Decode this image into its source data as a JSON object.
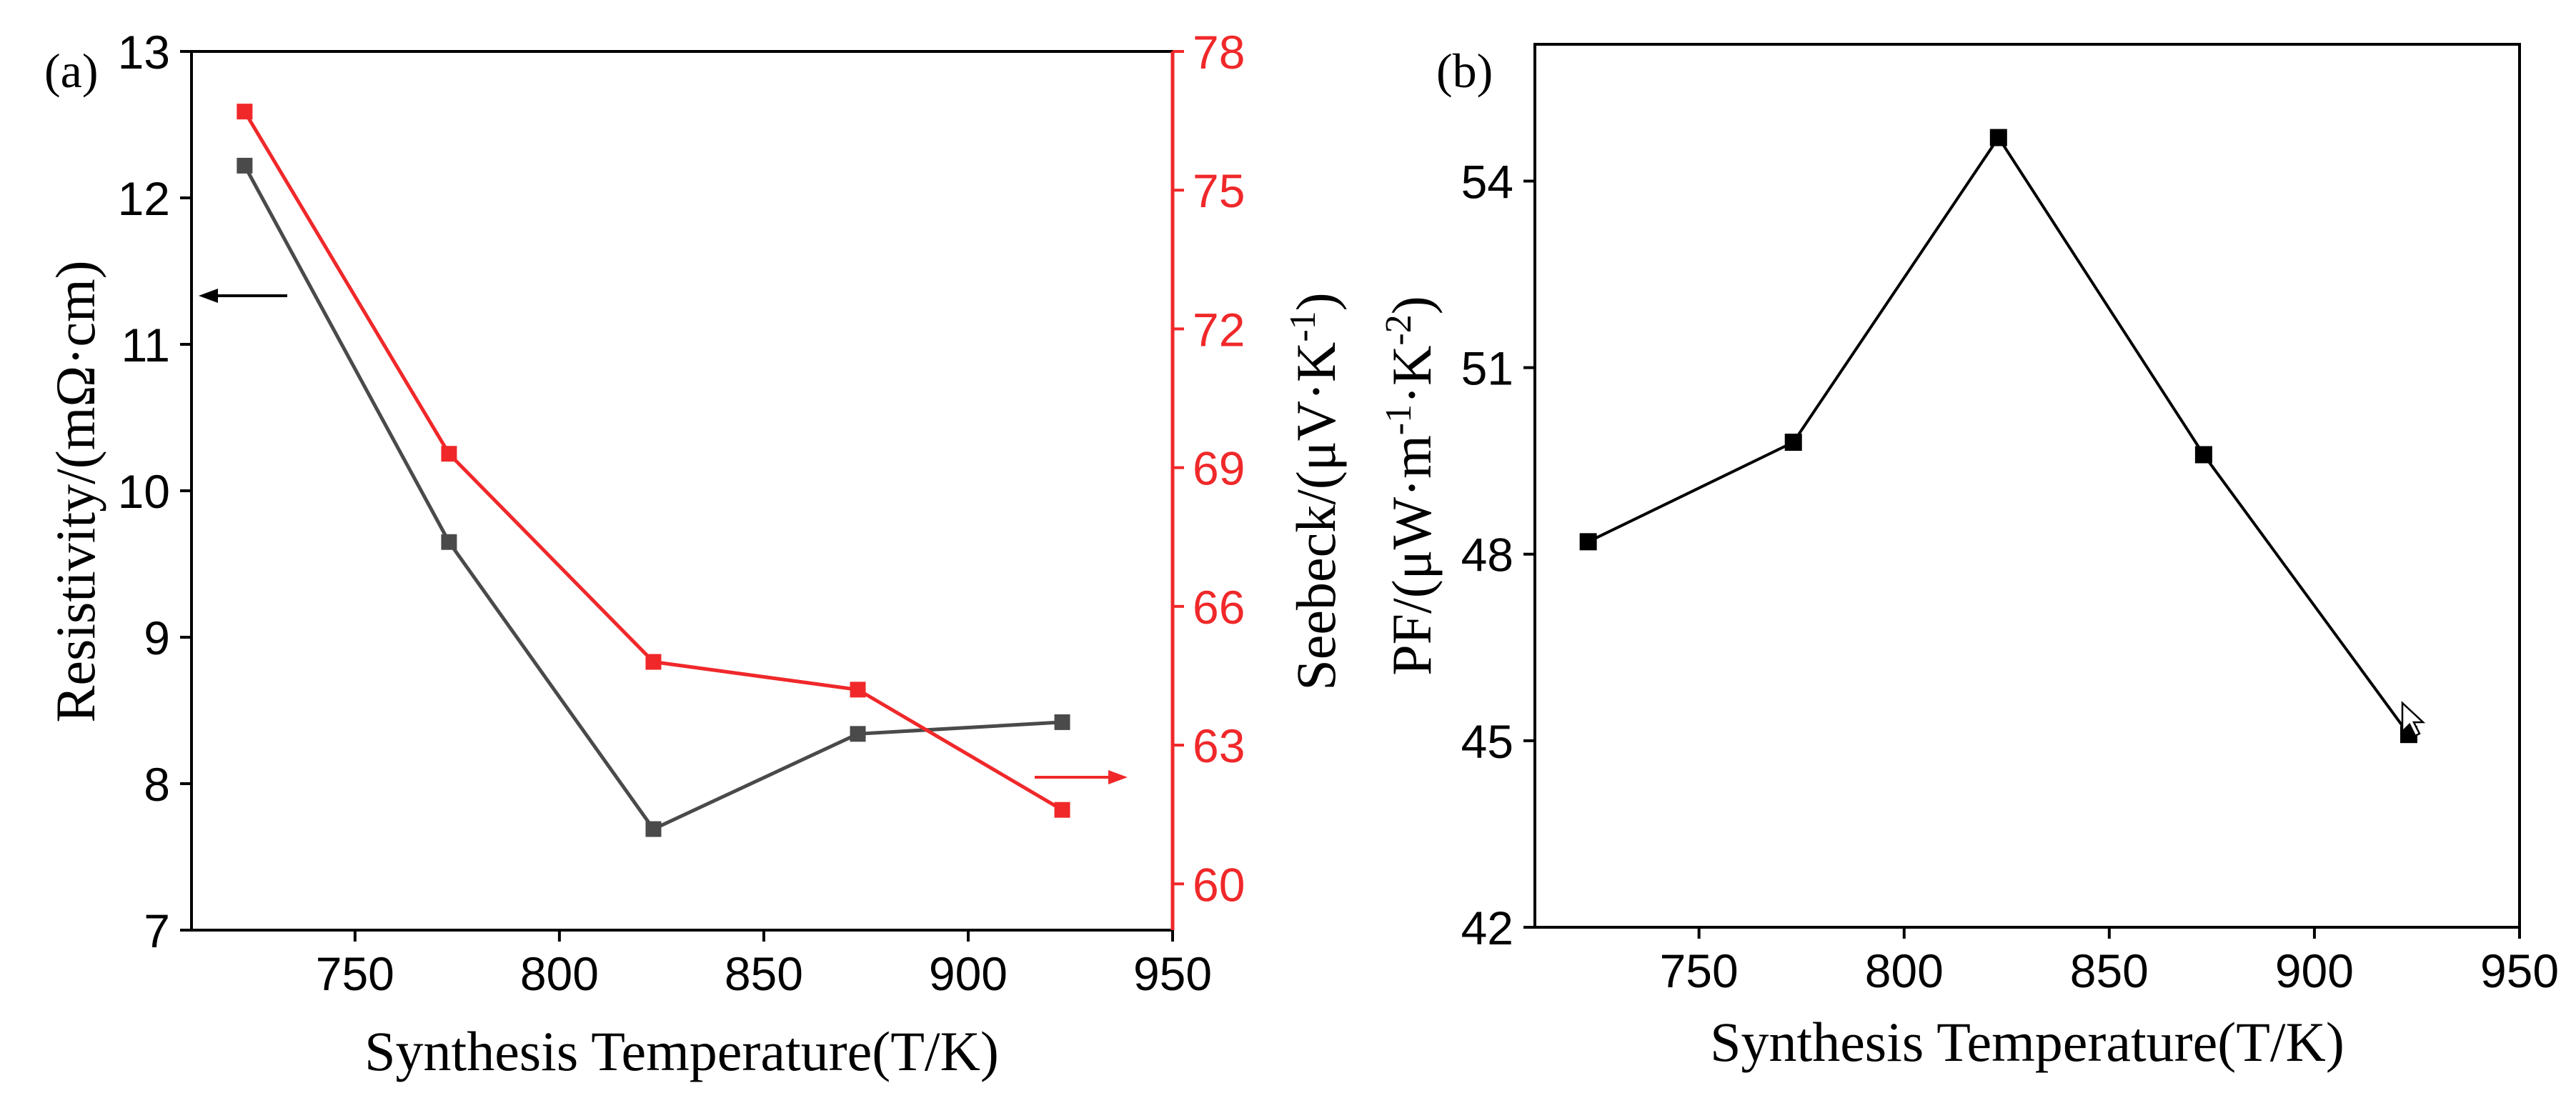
{
  "colors": {
    "axis": "#000000",
    "resistivity": "#4a4a4a",
    "seebeck": "#f0282a",
    "pf": "#000000"
  },
  "chart_data": [
    {
      "panel_label": "(a)",
      "type": "line",
      "dual_axis": true,
      "xlabel": "Synthesis Temperature(T/K)",
      "xlim": [
        710,
        950
      ],
      "xticks": [
        750,
        800,
        850,
        900,
        950
      ],
      "x": [
        723,
        773,
        823,
        873,
        923
      ],
      "left_axis": {
        "label": "Resistivity/(mΩ·cm)",
        "ylim": [
          7,
          13
        ],
        "ticks": [
          7,
          8,
          9,
          10,
          11,
          12,
          13
        ]
      },
      "right_axis": {
        "label_main": "Seebeck/(μV·K",
        "label_sup": "-1",
        "label_tail": ")",
        "ylim": [
          59,
          78
        ],
        "ticks": [
          60,
          63,
          66,
          69,
          72,
          75,
          78
        ]
      },
      "series": [
        {
          "name": "Resistivity",
          "axis": "left",
          "values": [
            12.22,
            9.65,
            7.69,
            8.34,
            8.42
          ]
        },
        {
          "name": "Seebeck",
          "axis": "right",
          "values": [
            76.7,
            69.3,
            64.8,
            64.2,
            61.6
          ]
        }
      ]
    },
    {
      "panel_label": "(b)",
      "type": "line",
      "xlabel": "Synthesis Temperature(T/K)",
      "xlim": [
        710,
        950
      ],
      "xticks": [
        750,
        800,
        850,
        900,
        950
      ],
      "x": [
        723,
        773,
        823,
        873,
        923
      ],
      "ylabel_main": "PF/(μW·m",
      "ylabel_sup1": "-1",
      "ylabel_mid": "·K",
      "ylabel_sup2": "-2",
      "ylabel_tail": ")",
      "ylim": [
        42,
        56.2
      ],
      "yticks": [
        42,
        45,
        48,
        51,
        54
      ],
      "series": [
        {
          "name": "PF",
          "values": [
            48.2,
            49.8,
            54.7,
            49.6,
            45.1
          ]
        }
      ]
    }
  ]
}
